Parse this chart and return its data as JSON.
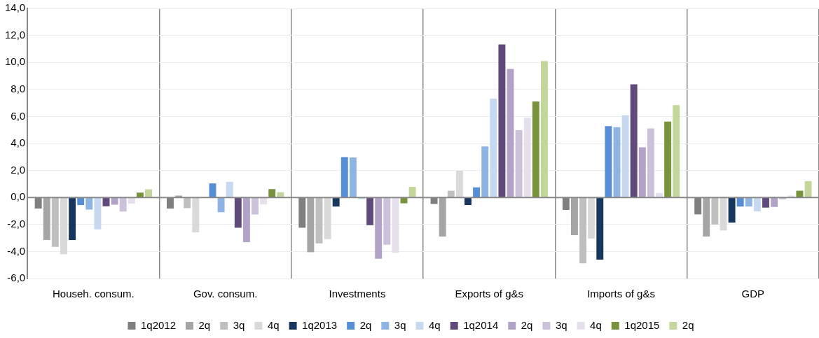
{
  "chart_data": {
    "type": "bar",
    "categories": [
      "Househ. consum.",
      "Gov. consum.",
      "Investments",
      "Exports of g&s",
      "Imports of g&s",
      "GDP"
    ],
    "ylim": [
      -6,
      14
    ],
    "yticks": [
      {
        "value": -6,
        "label": "-6,0"
      },
      {
        "value": -4,
        "label": "-4,0"
      },
      {
        "value": -2,
        "label": "-2,0"
      },
      {
        "value": 0,
        "label": "0,0"
      },
      {
        "value": 2,
        "label": "2,0"
      },
      {
        "value": 4,
        "label": "4,0"
      },
      {
        "value": 6,
        "label": "6,0"
      },
      {
        "value": 8,
        "label": "8,0"
      },
      {
        "value": 10,
        "label": "10,0"
      },
      {
        "value": 12,
        "label": "12,0"
      },
      {
        "value": 14,
        "label": "14,0"
      }
    ],
    "grid": true,
    "legend": "bottom",
    "series": [
      {
        "name": "1q2012",
        "color": "#7f7f7f",
        "values": [
          -0.82,
          -0.82,
          -2.24,
          -0.48,
          -0.92,
          -1.25
        ]
      },
      {
        "name": "2q",
        "color": "#a5a5a5",
        "values": [
          -3.15,
          0.14,
          -4.05,
          -2.89,
          -2.79,
          -2.89
        ]
      },
      {
        "name": "3q",
        "color": "#bfbfbf",
        "values": [
          -3.66,
          -0.79,
          -3.4,
          0.5,
          -4.87,
          -2.0
        ]
      },
      {
        "name": "4q",
        "color": "#d9d9d9",
        "values": [
          -4.2,
          -2.58,
          -3.08,
          1.98,
          -3.04,
          -2.44
        ]
      },
      {
        "name": "1q2013",
        "color": "#17375e",
        "values": [
          -3.15,
          0,
          -0.67,
          -0.56,
          -4.6,
          -1.86
        ]
      },
      {
        "name": "2q",
        "color": "#558ed5",
        "values": [
          -0.56,
          1.04,
          2.99,
          0.75,
          5.28,
          -0.67
        ]
      },
      {
        "name": "3q",
        "color": "#8eb4e3",
        "values": [
          -0.9,
          -1.09,
          2.96,
          3.78,
          5.2,
          -0.67
        ]
      },
      {
        "name": "4q",
        "color": "#c6d9f1",
        "values": [
          -2.36,
          1.16,
          -0.12,
          7.32,
          6.09,
          -1.03
        ]
      },
      {
        "name": "1q2014",
        "color": "#604a7b",
        "values": [
          -0.65,
          -2.24,
          -2.05,
          11.33,
          8.38,
          -0.75
        ]
      },
      {
        "name": "2q",
        "color": "#b3a2c7",
        "values": [
          -0.54,
          -3.31,
          -4.53,
          9.52,
          3.71,
          -0.7
        ]
      },
      {
        "name": "3q",
        "color": "#ccc1da",
        "values": [
          -1.04,
          -1.26,
          -3.5,
          4.99,
          5.11,
          -0.14
        ]
      },
      {
        "name": "4q",
        "color": "#e6e0ec",
        "values": [
          -0.46,
          -0.51,
          -4.1,
          5.9,
          0.34,
          0.14
        ]
      },
      {
        "name": "1q2015",
        "color": "#77933c",
        "values": [
          0.36,
          0.62,
          -0.43,
          7.11,
          5.62,
          0.5
        ]
      },
      {
        "name": "2q",
        "color": "#c3d69b",
        "values": [
          0.6,
          0.39,
          0.79,
          10.1,
          6.84,
          1.21
        ]
      }
    ]
  }
}
